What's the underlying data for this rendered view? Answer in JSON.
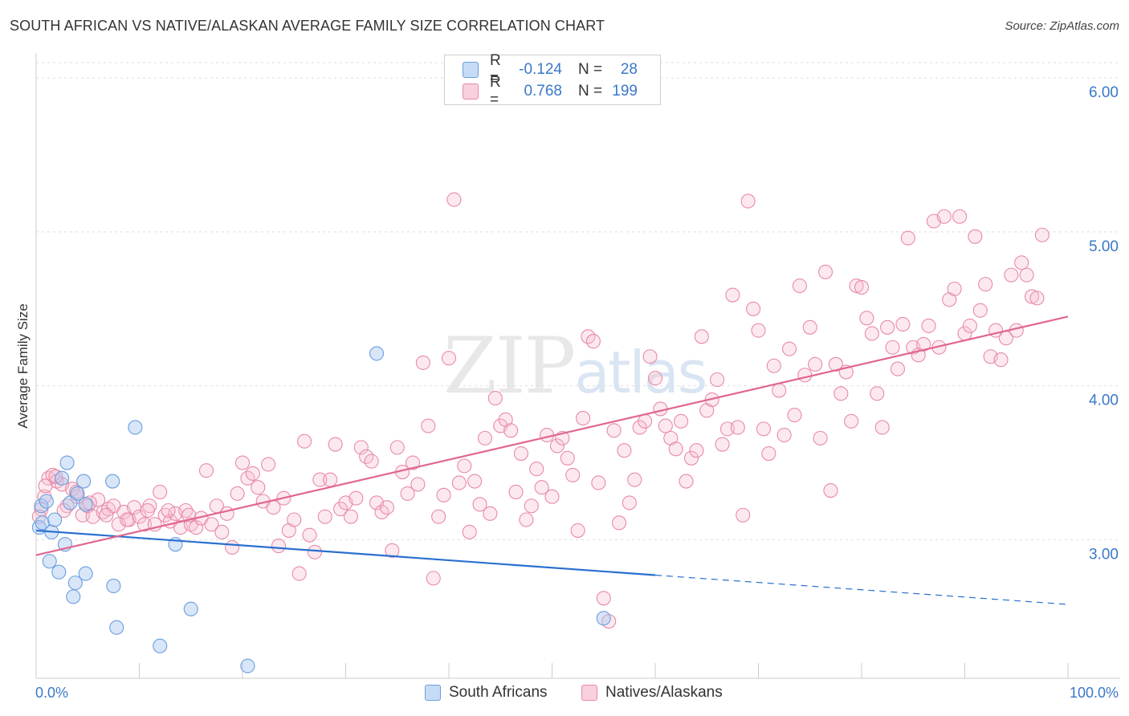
{
  "header": {
    "title": "SOUTH AFRICAN VS NATIVE/ALASKAN AVERAGE FAMILY SIZE CORRELATION CHART",
    "source": "Source: ZipAtlas.com"
  },
  "watermark": {
    "zip": "ZIP",
    "atlas": "atlas"
  },
  "legend": {
    "rows": [
      {
        "r_label": "R =",
        "r_value": "-0.124",
        "n_label": "N =",
        "n_value": "28",
        "color": "#a8c8f0",
        "border": "#6a9ee0"
      },
      {
        "r_label": "R =",
        "r_value": "0.768",
        "n_label": "N =",
        "n_value": "199",
        "color": "#f7bfd0",
        "border": "#e88aa8"
      }
    ]
  },
  "bottom_legend": {
    "south_africans": "South Africans",
    "natives": "Natives/Alaskans"
  },
  "chart_data": {
    "type": "scatter",
    "title": "SOUTH AFRICAN VS NATIVE/ALASKAN AVERAGE FAMILY SIZE CORRELATION CHART",
    "xlabel": "",
    "ylabel": "Average Family Size",
    "xlim": [
      0,
      100
    ],
    "ylim": [
      2.1,
      6.1
    ],
    "x_tick_labels": [
      "0.0%",
      "100.0%"
    ],
    "y_ticks": [
      3.0,
      4.0,
      5.0,
      6.0
    ],
    "y_tick_labels": [
      "3.00",
      "4.00",
      "5.00",
      "6.00"
    ],
    "grid": true,
    "series": [
      {
        "name": "South Africans",
        "color": "#a8c8f0",
        "stroke": "#6a9ee0",
        "trend_color": "#2a6fd0",
        "trend": {
          "x0": 0,
          "y0": 3.06,
          "x1": 60,
          "y1": 2.77,
          "dash_to_x": 100,
          "dash_to_y": 2.58
        },
        "points": [
          [
            0.3,
            3.08
          ],
          [
            0.5,
            3.22
          ],
          [
            0.6,
            3.11
          ],
          [
            1.0,
            3.25
          ],
          [
            1.5,
            3.05
          ],
          [
            1.8,
            3.13
          ],
          [
            2.2,
            2.79
          ],
          [
            2.5,
            3.4
          ],
          [
            2.8,
            2.97
          ],
          [
            3.0,
            3.5
          ],
          [
            3.3,
            3.24
          ],
          [
            3.6,
            2.63
          ],
          [
            3.8,
            2.72
          ],
          [
            4.0,
            3.3
          ],
          [
            4.6,
            3.38
          ],
          [
            4.8,
            3.23
          ],
          [
            4.8,
            2.78
          ],
          [
            7.4,
            3.38
          ],
          [
            7.5,
            2.7
          ],
          [
            7.8,
            2.43
          ],
          [
            9.6,
            3.73
          ],
          [
            12.0,
            2.31
          ],
          [
            13.5,
            2.97
          ],
          [
            15.0,
            2.55
          ],
          [
            20.5,
            2.18
          ],
          [
            33.0,
            4.21
          ],
          [
            55.0,
            2.49
          ],
          [
            1.3,
            2.86
          ]
        ]
      },
      {
        "name": "Natives/Alaskans",
        "color": "#f7bfd0",
        "stroke": "#e88aa8",
        "trend_color": "#e06690",
        "trend": {
          "x0": 0,
          "y0": 2.9,
          "x1": 100,
          "y1": 4.45
        },
        "points": [
          [
            0.5,
            3.2
          ],
          [
            0.8,
            3.28
          ],
          [
            1.2,
            3.4
          ],
          [
            1.6,
            3.42
          ],
          [
            2.0,
            3.38
          ],
          [
            2.5,
            3.36
          ],
          [
            3.0,
            3.22
          ],
          [
            3.5,
            3.33
          ],
          [
            4.0,
            3.28
          ],
          [
            4.5,
            3.16
          ],
          [
            5.0,
            3.22
          ],
          [
            5.5,
            3.15
          ],
          [
            6.0,
            3.26
          ],
          [
            6.5,
            3.18
          ],
          [
            7.0,
            3.2
          ],
          [
            7.5,
            3.22
          ],
          [
            8.0,
            3.1
          ],
          [
            8.5,
            3.18
          ],
          [
            9.0,
            3.13
          ],
          [
            9.5,
            3.21
          ],
          [
            10.0,
            3.15
          ],
          [
            10.5,
            3.1
          ],
          [
            11.0,
            3.22
          ],
          [
            11.5,
            3.1
          ],
          [
            12.0,
            3.31
          ],
          [
            12.5,
            3.16
          ],
          [
            13.0,
            3.12
          ],
          [
            13.5,
            3.17
          ],
          [
            14.0,
            3.08
          ],
          [
            14.5,
            3.19
          ],
          [
            15.0,
            3.1
          ],
          [
            15.5,
            3.08
          ],
          [
            16.0,
            3.14
          ],
          [
            16.5,
            3.45
          ],
          [
            17.0,
            3.1
          ],
          [
            17.5,
            3.22
          ],
          [
            18.0,
            3.05
          ],
          [
            18.5,
            3.17
          ],
          [
            19.0,
            2.95
          ],
          [
            19.5,
            3.3
          ],
          [
            20.0,
            3.5
          ],
          [
            20.5,
            3.4
          ],
          [
            21.0,
            3.43
          ],
          [
            21.5,
            3.34
          ],
          [
            22.0,
            3.25
          ],
          [
            22.5,
            3.49
          ],
          [
            23.0,
            3.21
          ],
          [
            23.5,
            2.96
          ],
          [
            24.0,
            3.27
          ],
          [
            24.5,
            3.06
          ],
          [
            25.0,
            3.13
          ],
          [
            25.5,
            2.78
          ],
          [
            26.0,
            3.64
          ],
          [
            26.5,
            3.03
          ],
          [
            27.0,
            2.92
          ],
          [
            27.5,
            3.39
          ],
          [
            28.0,
            3.15
          ],
          [
            28.5,
            3.39
          ],
          [
            29.0,
            3.62
          ],
          [
            29.5,
            3.2
          ],
          [
            30.0,
            3.24
          ],
          [
            30.5,
            3.15
          ],
          [
            31.0,
            3.27
          ],
          [
            31.5,
            3.6
          ],
          [
            32.0,
            3.54
          ],
          [
            32.5,
            3.51
          ],
          [
            33.0,
            3.24
          ],
          [
            33.5,
            3.18
          ],
          [
            34.0,
            3.21
          ],
          [
            34.5,
            2.93
          ],
          [
            35.0,
            3.6
          ],
          [
            35.5,
            3.44
          ],
          [
            36.0,
            3.3
          ],
          [
            36.5,
            3.5
          ],
          [
            37.0,
            3.36
          ],
          [
            37.5,
            4.15
          ],
          [
            38.0,
            3.74
          ],
          [
            38.5,
            2.75
          ],
          [
            39.0,
            3.15
          ],
          [
            39.5,
            3.29
          ],
          [
            40.0,
            4.18
          ],
          [
            40.5,
            5.21
          ],
          [
            41.0,
            3.37
          ],
          [
            41.5,
            3.48
          ],
          [
            42.0,
            3.05
          ],
          [
            42.5,
            3.38
          ],
          [
            43.0,
            3.23
          ],
          [
            43.5,
            3.66
          ],
          [
            44.0,
            3.17
          ],
          [
            44.5,
            3.92
          ],
          [
            45.0,
            3.74
          ],
          [
            45.5,
            3.78
          ],
          [
            46.0,
            3.71
          ],
          [
            46.5,
            3.31
          ],
          [
            47.0,
            3.56
          ],
          [
            47.5,
            3.13
          ],
          [
            48.0,
            3.22
          ],
          [
            48.5,
            3.46
          ],
          [
            49.0,
            3.34
          ],
          [
            49.5,
            3.68
          ],
          [
            50.0,
            3.28
          ],
          [
            50.5,
            3.61
          ],
          [
            51.0,
            3.66
          ],
          [
            51.5,
            3.53
          ],
          [
            52.0,
            3.42
          ],
          [
            52.5,
            3.06
          ],
          [
            53.0,
            3.79
          ],
          [
            53.5,
            4.32
          ],
          [
            54.0,
            4.29
          ],
          [
            54.5,
            3.37
          ],
          [
            55.0,
            2.62
          ],
          [
            55.5,
            2.47
          ],
          [
            56.0,
            3.71
          ],
          [
            56.5,
            3.11
          ],
          [
            57.0,
            3.58
          ],
          [
            57.5,
            3.24
          ],
          [
            58.0,
            3.39
          ],
          [
            58.5,
            3.73
          ],
          [
            59.0,
            3.77
          ],
          [
            59.5,
            4.19
          ],
          [
            60.0,
            4.05
          ],
          [
            60.5,
            3.85
          ],
          [
            61.0,
            3.74
          ],
          [
            61.5,
            3.66
          ],
          [
            62.0,
            3.59
          ],
          [
            62.5,
            3.77
          ],
          [
            63.0,
            3.38
          ],
          [
            63.5,
            3.53
          ],
          [
            64.0,
            3.58
          ],
          [
            64.5,
            4.32
          ],
          [
            65.0,
            3.84
          ],
          [
            65.5,
            3.91
          ],
          [
            66.0,
            4.04
          ],
          [
            66.5,
            3.62
          ],
          [
            67.0,
            3.72
          ],
          [
            67.5,
            4.59
          ],
          [
            68.0,
            3.73
          ],
          [
            68.5,
            3.16
          ],
          [
            69.0,
            5.2
          ],
          [
            69.5,
            4.5
          ],
          [
            70.0,
            4.36
          ],
          [
            70.5,
            3.72
          ],
          [
            71.0,
            3.56
          ],
          [
            71.5,
            4.13
          ],
          [
            72.0,
            3.97
          ],
          [
            72.5,
            3.68
          ],
          [
            73.0,
            4.24
          ],
          [
            73.5,
            3.81
          ],
          [
            74.0,
            4.65
          ],
          [
            74.5,
            4.07
          ],
          [
            75.0,
            4.38
          ],
          [
            75.5,
            4.14
          ],
          [
            76.0,
            3.66
          ],
          [
            76.5,
            4.74
          ],
          [
            77.0,
            3.32
          ],
          [
            77.5,
            4.14
          ],
          [
            78.0,
            3.95
          ],
          [
            78.5,
            4.09
          ],
          [
            79.0,
            3.77
          ],
          [
            79.5,
            4.65
          ],
          [
            80.0,
            4.64
          ],
          [
            80.5,
            4.44
          ],
          [
            81.0,
            4.34
          ],
          [
            81.5,
            3.95
          ],
          [
            82.0,
            3.73
          ],
          [
            82.5,
            4.38
          ],
          [
            83.0,
            4.25
          ],
          [
            83.5,
            4.11
          ],
          [
            84.0,
            4.4
          ],
          [
            84.5,
            4.96
          ],
          [
            85.0,
            4.25
          ],
          [
            85.5,
            4.2
          ],
          [
            86.0,
            4.27
          ],
          [
            86.5,
            4.39
          ],
          [
            87.0,
            5.07
          ],
          [
            87.5,
            4.25
          ],
          [
            88.0,
            5.1
          ],
          [
            88.5,
            4.56
          ],
          [
            89.0,
            4.63
          ],
          [
            89.5,
            5.1
          ],
          [
            90.0,
            4.34
          ],
          [
            90.5,
            4.39
          ],
          [
            91.0,
            4.97
          ],
          [
            91.5,
            4.49
          ],
          [
            92.0,
            4.66
          ],
          [
            92.5,
            4.19
          ],
          [
            93.0,
            4.36
          ],
          [
            93.5,
            4.17
          ],
          [
            94.0,
            4.31
          ],
          [
            94.5,
            4.72
          ],
          [
            95.0,
            4.36
          ],
          [
            95.5,
            4.8
          ],
          [
            96.0,
            4.72
          ],
          [
            96.5,
            4.58
          ],
          [
            97.0,
            4.57
          ],
          [
            97.5,
            4.98
          ],
          [
            0.3,
            3.15
          ],
          [
            0.9,
            3.35
          ],
          [
            1.9,
            3.41
          ],
          [
            2.7,
            3.19
          ],
          [
            3.9,
            3.31
          ],
          [
            5.2,
            3.24
          ],
          [
            6.8,
            3.16
          ],
          [
            8.8,
            3.13
          ],
          [
            10.8,
            3.19
          ],
          [
            12.8,
            3.19
          ],
          [
            14.8,
            3.16
          ]
        ]
      }
    ]
  }
}
